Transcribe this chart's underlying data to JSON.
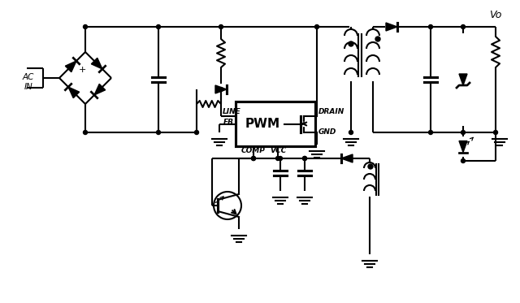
{
  "background": "#ffffff",
  "line_color": "#000000",
  "line_width": 1.5,
  "figsize": [
    6.4,
    3.73
  ],
  "dpi": 100,
  "labels": {
    "ac_in": "AC\nIN",
    "line_pin": "LINE",
    "drain": "DRAIN",
    "gnd": "GND",
    "fb": "FB",
    "comp": "COMP",
    "vcc": "VCC",
    "pwm": "PWM",
    "vo": "Vo"
  }
}
